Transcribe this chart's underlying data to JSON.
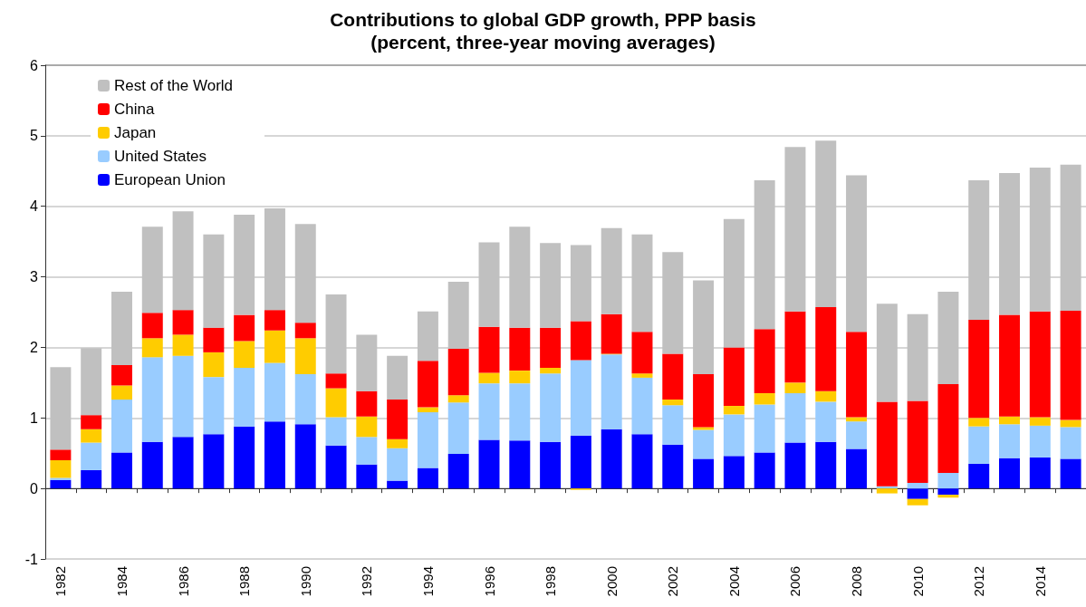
{
  "chart_data": {
    "type": "bar",
    "title": "Contributions to global GDP growth, PPP basis",
    "subtitle": "(percent, three-year moving averages)",
    "categories": [
      "1982",
      null,
      "1984",
      null,
      "1986",
      null,
      "1988",
      null,
      "1990",
      null,
      "1992",
      null,
      "1994",
      null,
      "1996",
      null,
      "1998",
      null,
      "2000",
      null,
      "2002",
      null,
      "2004",
      null,
      "2006",
      null,
      "2008",
      null,
      "2010",
      null,
      "2012",
      null,
      "2014",
      null
    ],
    "stacked": true,
    "ylim": [
      -1,
      6
    ],
    "yticks": [
      -1,
      0,
      1,
      2,
      3,
      4,
      5,
      6
    ],
    "grid": "y",
    "legend": "top left",
    "series": [
      {
        "name": "European Union",
        "color": "#0000ff",
        "values": [
          0.12,
          0.26,
          0.51,
          0.66,
          0.73,
          0.77,
          0.88,
          0.95,
          0.91,
          0.61,
          0.34,
          0.11,
          0.29,
          0.49,
          0.69,
          0.68,
          0.66,
          0.75,
          0.84,
          0.77,
          0.62,
          0.42,
          0.46,
          0.51,
          0.65,
          0.66,
          0.56,
          0,
          -0.15,
          -0.09,
          0.35,
          0.43,
          0.44,
          0.42
        ]
      },
      {
        "name": "United States",
        "color": "#99ccff",
        "values": [
          0.03,
          0.39,
          0.75,
          1.2,
          1.15,
          0.81,
          0.83,
          0.83,
          0.71,
          0.4,
          0.39,
          0.46,
          0.79,
          0.73,
          0.8,
          0.81,
          0.97,
          1.07,
          1.06,
          0.8,
          0.56,
          0.41,
          0.59,
          0.68,
          0.7,
          0.57,
          0.39,
          0.03,
          0.08,
          0.22,
          0.53,
          0.48,
          0.45,
          0.45
        ]
      },
      {
        "name": "Japan",
        "color": "#ffcc00",
        "values": [
          0.25,
          0.19,
          0.2,
          0.27,
          0.3,
          0.35,
          0.38,
          0.46,
          0.51,
          0.41,
          0.29,
          0.13,
          0.07,
          0.1,
          0.15,
          0.18,
          0.08,
          -0.02,
          0.01,
          0.06,
          0.08,
          0.04,
          0.12,
          0.16,
          0.15,
          0.15,
          0.06,
          -0.07,
          -0.09,
          -0.04,
          0.12,
          0.11,
          0.12,
          0.1
        ]
      },
      {
        "name": "China",
        "color": "#ff0000",
        "values": [
          0.15,
          0.2,
          0.29,
          0.36,
          0.35,
          0.35,
          0.37,
          0.29,
          0.22,
          0.21,
          0.36,
          0.56,
          0.66,
          0.66,
          0.65,
          0.61,
          0.57,
          0.55,
          0.56,
          0.59,
          0.65,
          0.75,
          0.83,
          0.91,
          1.01,
          1.19,
          1.21,
          1.2,
          1.16,
          1.26,
          1.39,
          1.44,
          1.5,
          1.55
        ]
      },
      {
        "name": "Rest of the World",
        "color": "#c0c0c0",
        "values": [
          1.17,
          0.95,
          1.04,
          1.22,
          1.4,
          1.32,
          1.42,
          1.44,
          1.4,
          1.12,
          0.8,
          0.62,
          0.7,
          0.95,
          1.2,
          1.43,
          1.2,
          1.08,
          1.22,
          1.38,
          1.44,
          1.33,
          1.82,
          2.11,
          2.33,
          2.36,
          2.22,
          1.39,
          1.23,
          1.31,
          1.98,
          2.01,
          2.04,
          2.07
        ]
      }
    ]
  }
}
